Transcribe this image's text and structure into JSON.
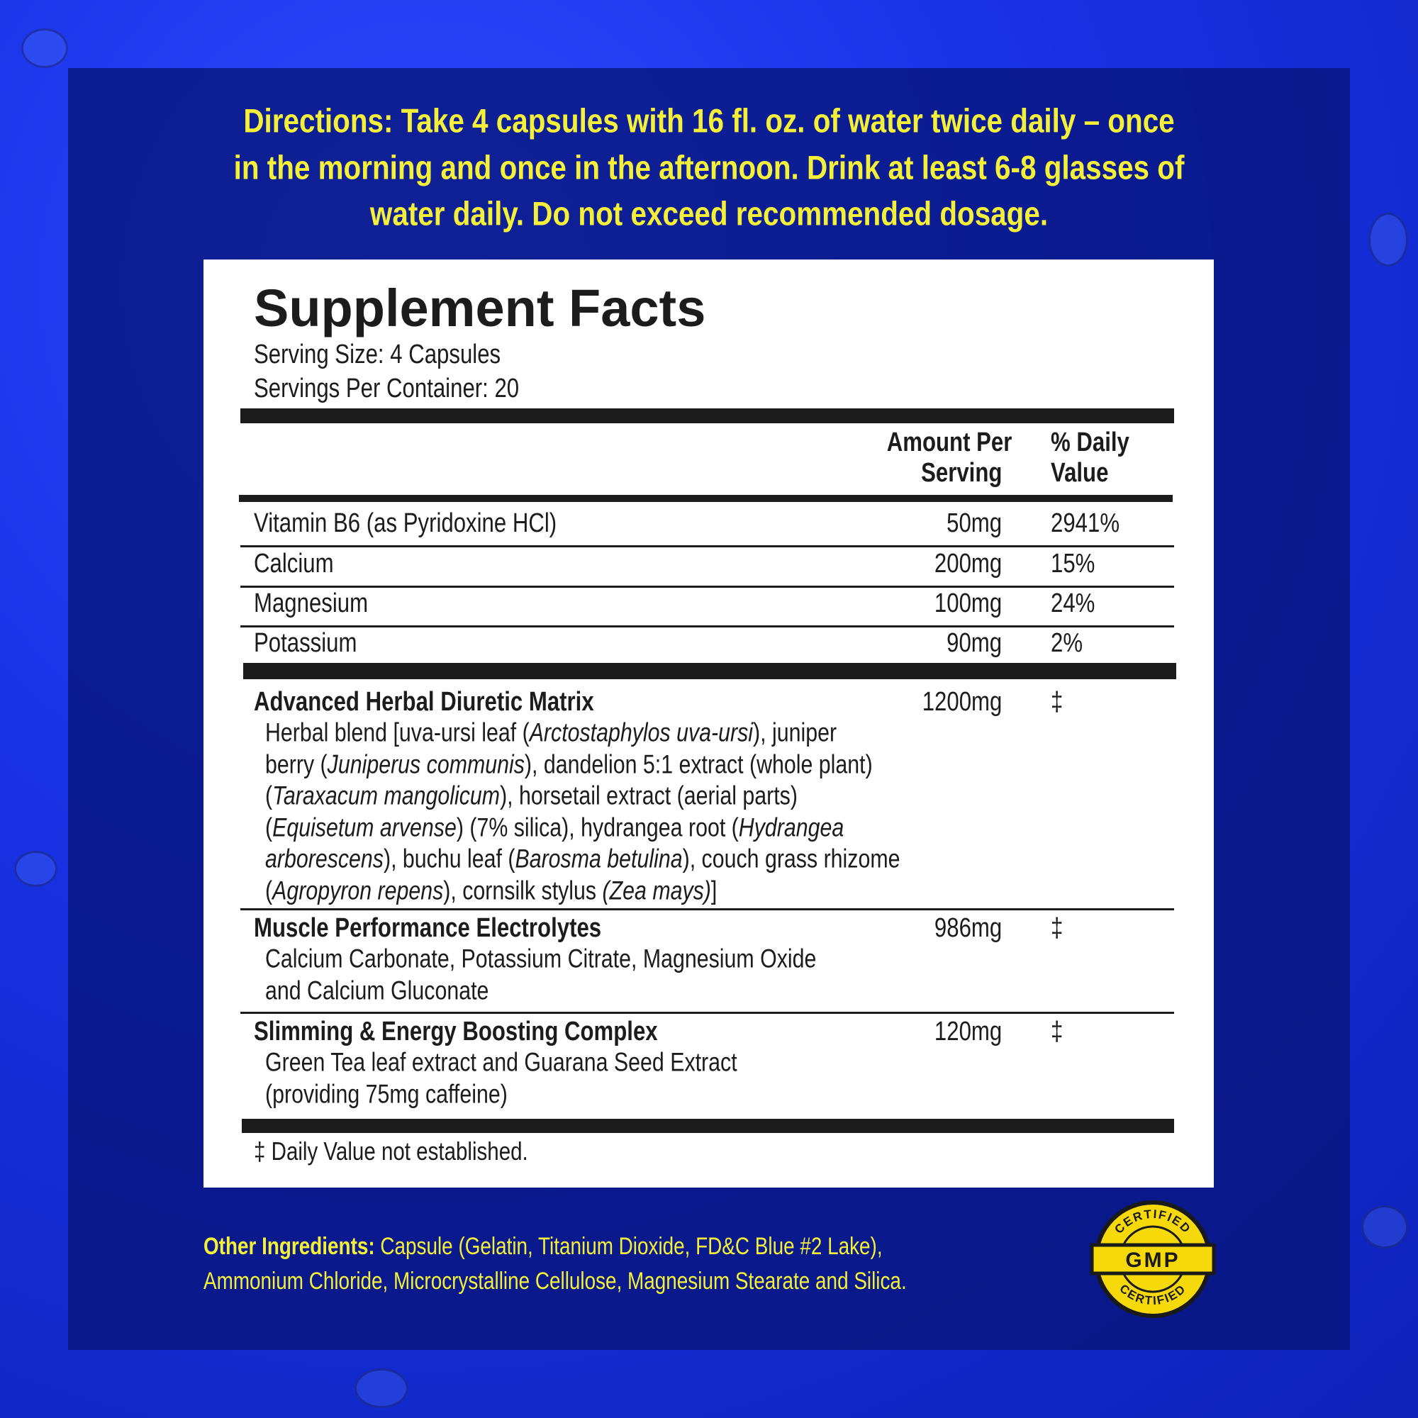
{
  "directions": [
    "Directions: Take 4 capsules with 16 fl. oz. of water twice daily – once",
    "in the morning and once in the afternoon. Drink at least 6-8 glasses of",
    "water daily.  Do not exceed recommended dosage."
  ],
  "facts": {
    "title": "Supplement Facts",
    "serving_size": "Serving Size: 4 Capsules",
    "servings_per_container": "Servings Per Container: 20",
    "header": {
      "amount": [
        "Amount Per",
        "Serving"
      ],
      "daily_value": [
        "% Daily",
        "Value"
      ]
    },
    "nutrients": [
      {
        "name": "Vitamin B6 (as Pyridoxine HCl)",
        "amount": "50mg",
        "daily_value": "2941%"
      },
      {
        "name": "Calcium",
        "amount": "200mg",
        "daily_value": "15%"
      },
      {
        "name": "Magnesium",
        "amount": "100mg",
        "daily_value": "24%"
      },
      {
        "name": "Potassium",
        "amount": "90mg",
        "daily_value": "2%"
      }
    ],
    "blends": [
      {
        "name": "Advanced Herbal Diuretic Matrix",
        "amount": "1200mg",
        "daily_value": "‡",
        "lines": [
          [
            "Herbal blend [uva-ursi leaf (",
            {
              "text": "Arctostaphylos uva-ursi",
              "italic": true
            },
            "), juniper"
          ],
          [
            "berry (",
            {
              "text": "Juniperus communis",
              "italic": true
            },
            "), dandelion 5:1 extract (whole plant)"
          ],
          [
            "(",
            {
              "text": "Taraxacum mangolicum",
              "italic": true
            },
            "), horsetail extract (aerial parts)"
          ],
          [
            "(",
            {
              "text": "Equisetum arvense",
              "italic": true
            },
            ") (7% silica), hydrangea root (",
            {
              "text": "Hydrangea",
              "italic": true
            }
          ],
          [
            {
              "text": "arborescens",
              "italic": true
            },
            "), buchu leaf (",
            {
              "text": "Barosma betulina",
              "italic": true
            },
            "), couch grass rhizome"
          ],
          [
            "(",
            {
              "text": "Agropyron repens",
              "italic": true
            },
            "), cornsilk stylus ",
            {
              "text": "(Zea mays)",
              "italic": true
            },
            "]"
          ]
        ]
      },
      {
        "name": "Muscle Performance Electrolytes",
        "amount": "986mg",
        "daily_value": "‡",
        "lines": [
          [
            "Calcium Carbonate, Potassium Citrate, Magnesium Oxide"
          ],
          [
            "and Calcium Gluconate"
          ]
        ]
      },
      {
        "name": "Slimming & Energy Boosting Complex",
        "amount": "120mg",
        "daily_value": "‡",
        "lines": [
          [
            "Green Tea leaf extract and Guarana Seed Extract"
          ],
          [
            "(providing 75mg caffeine)"
          ]
        ]
      }
    ],
    "footnote": "‡ Daily Value not established."
  },
  "other_ingredients": {
    "label": "Other Ingredients:",
    "lines": [
      " Capsule (Gelatin, Titanium Dioxide,  FD&C Blue #2 Lake),",
      "Ammonium Chloride, Microcrystalline Cellulose, Magnesium Stearate and Silica."
    ]
  },
  "badge": {
    "top": "CERTIFIED",
    "center": "GMP",
    "bottom": "CERTIFIED"
  }
}
